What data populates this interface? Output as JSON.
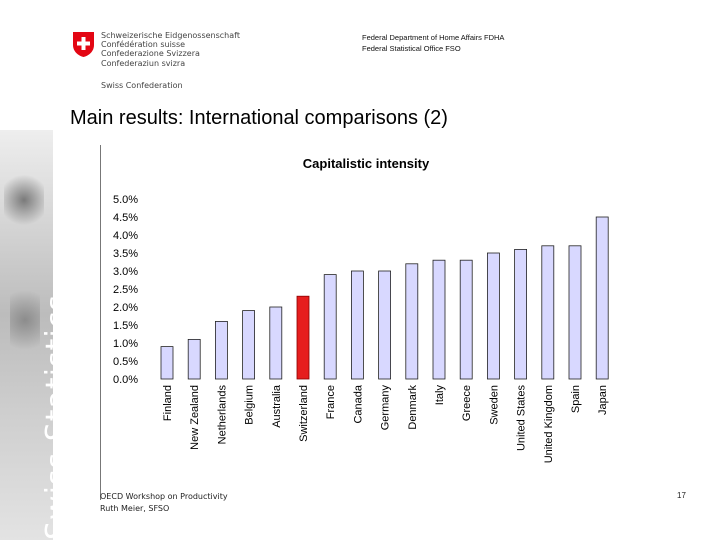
{
  "header": {
    "confederation_lines": [
      "Schweizerische Eidgenossenschaft",
      "Confédération suisse",
      "Confederazione Svizzera",
      "Confederaziun svizra"
    ],
    "confederation_sub": "Swiss Confederation",
    "department": "Federal Department of Home Affairs FDHA",
    "office": "Federal Statistical Office FSO"
  },
  "slide": {
    "title": "Main results: International comparisons (2)",
    "sidebar_text": "Swiss Statistics",
    "footer_line1": "OECD Workshop on Productivity",
    "footer_line2": "Ruth Meier, SFSO",
    "page_number": "17"
  },
  "colors": {
    "bar_default": "#d8d8ff",
    "bar_highlight": "#e61e1e",
    "swiss_red": "#e30613"
  },
  "icons": {
    "logo": "swiss-cross-shield-icon"
  },
  "chart_data": {
    "type": "bar",
    "title": "Capitalistic intensity",
    "categories": [
      "Finland",
      "New Zealand",
      "Netherlands",
      "Belgium",
      "Australia",
      "Switzerland",
      "France",
      "Canada",
      "Germany",
      "Denmark",
      "Italy",
      "Greece",
      "Sweden",
      "United States",
      "United Kingdom",
      "Spain",
      "Japan"
    ],
    "values": [
      0.9,
      1.1,
      1.6,
      1.9,
      2.0,
      2.3,
      2.9,
      3.0,
      3.0,
      3.2,
      3.3,
      3.3,
      3.5,
      3.6,
      3.7,
      3.7,
      4.5
    ],
    "highlight": "Switzerland",
    "y_ticks": [
      "5.0%",
      "4.5%",
      "4.0%",
      "3.5%",
      "3.0%",
      "2.5%",
      "2.0%",
      "1.5%",
      "1.0%",
      "0.5%",
      "0.0%"
    ],
    "ylim": [
      0,
      5
    ],
    "unit": "%",
    "grid": false,
    "legend": "none"
  }
}
